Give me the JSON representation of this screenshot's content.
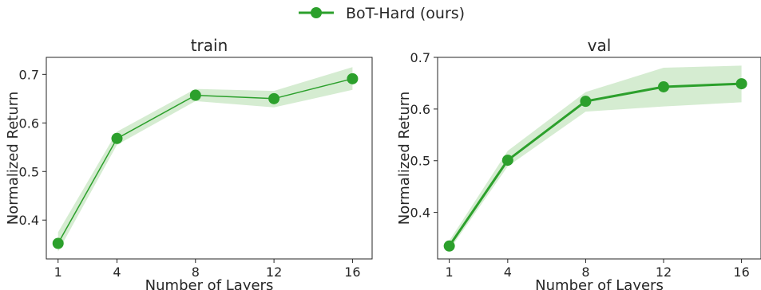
{
  "legend": {
    "label": "BoT-Hard (ours)",
    "placement": "top-center"
  },
  "colors": {
    "line": "#2ca02c",
    "band": "#d5ecd1",
    "axis": "#262626"
  },
  "chart_data": [
    {
      "type": "line",
      "title": "train",
      "xlabel": "Number of Layers",
      "ylabel": "Normalized Return",
      "x": [
        1,
        4,
        8,
        12,
        16
      ],
      "xticks": [
        1,
        4,
        8,
        12,
        16
      ],
      "yticks": [
        0.4,
        0.5,
        0.6,
        0.7
      ],
      "ylim": [
        0.32,
        0.735
      ],
      "xlim": [
        0.4,
        17.0
      ],
      "grid": false,
      "series": [
        {
          "name": "BoT-Hard (ours)",
          "values": [
            0.352,
            0.568,
            0.657,
            0.65,
            0.691
          ],
          "lower": [
            0.335,
            0.555,
            0.645,
            0.632,
            0.668
          ],
          "upper": [
            0.375,
            0.582,
            0.67,
            0.666,
            0.715
          ]
        }
      ]
    },
    {
      "type": "line",
      "title": "val",
      "xlabel": "Number of Layers",
      "ylabel": "Normalized Return",
      "x": [
        1,
        4,
        8,
        12,
        16
      ],
      "xticks": [
        1,
        4,
        8,
        12,
        16
      ],
      "yticks": [
        0.4,
        0.5,
        0.6,
        0.7
      ],
      "ylim": [
        0.31,
        0.7
      ],
      "xlim": [
        0.4,
        17.0
      ],
      "grid": false,
      "series": [
        {
          "name": "BoT-Hard (ours)",
          "values": [
            0.335,
            0.501,
            0.615,
            0.643,
            0.649
          ],
          "lower": [
            0.327,
            0.489,
            0.595,
            0.605,
            0.613
          ],
          "upper": [
            0.345,
            0.519,
            0.633,
            0.68,
            0.684
          ]
        }
      ]
    }
  ]
}
